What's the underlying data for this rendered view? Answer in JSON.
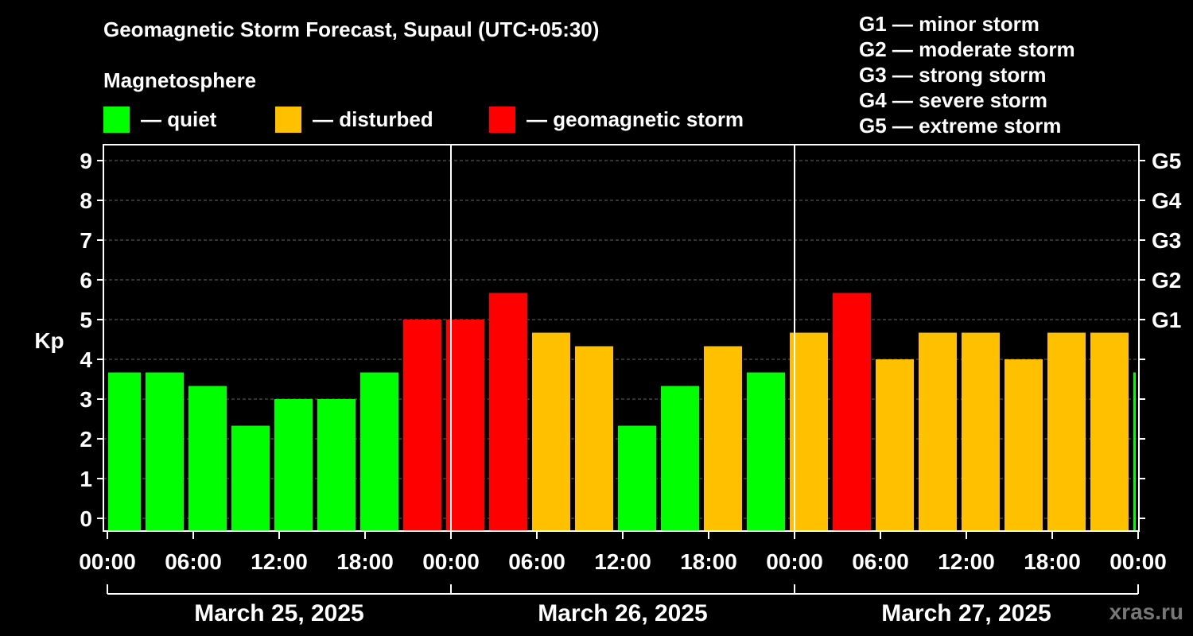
{
  "chart_data": {
    "type": "bar",
    "title": "Geomagnetic Storm Forecast, Supaul (UTC+05:30)",
    "ylabel": "Kp",
    "ylim": [
      0,
      9
    ],
    "y_ticks": [
      0,
      1,
      2,
      3,
      4,
      5,
      6,
      7,
      8,
      9
    ],
    "right_ticks": [
      {
        "kp": 5,
        "label": "G1"
      },
      {
        "kp": 6,
        "label": "G2"
      },
      {
        "kp": 7,
        "label": "G3"
      },
      {
        "kp": 8,
        "label": "G4"
      },
      {
        "kp": 9,
        "label": "G5"
      }
    ],
    "x_tick_labels": [
      "00:00",
      "06:00",
      "12:00",
      "18:00",
      "00:00",
      "06:00",
      "12:00",
      "18:00",
      "00:00",
      "06:00",
      "12:00",
      "18:00",
      "00:00"
    ],
    "days": [
      "March 25, 2025",
      "March 26, 2025",
      "March 27, 2025"
    ],
    "bar_interval_hours": 3,
    "first_bar_start_hour": -0.5,
    "values": [
      3.67,
      3.67,
      3.33,
      2.33,
      3.0,
      3.0,
      3.67,
      5.0,
      5.0,
      5.67,
      4.67,
      4.33,
      2.33,
      3.33,
      4.33,
      3.67,
      4.67,
      5.67,
      4.0,
      4.67,
      4.67,
      4.0,
      4.67,
      4.67,
      3.67
    ],
    "grid": "dashed horizontal",
    "colors": {
      "quiet": "#00ff00",
      "disturbed": "#ffc000",
      "storm": "#ff0000"
    }
  },
  "legend": {
    "heading": "Magnetosphere",
    "quiet": "— quiet",
    "disturbed": "— disturbed",
    "storm": "— geomagnetic storm"
  },
  "g_scale": [
    "G1 — minor storm",
    "G2 — moderate storm",
    "G3 — strong storm",
    "G4 — severe storm",
    "G5 — extreme storm"
  ],
  "watermark": "xras.ru"
}
